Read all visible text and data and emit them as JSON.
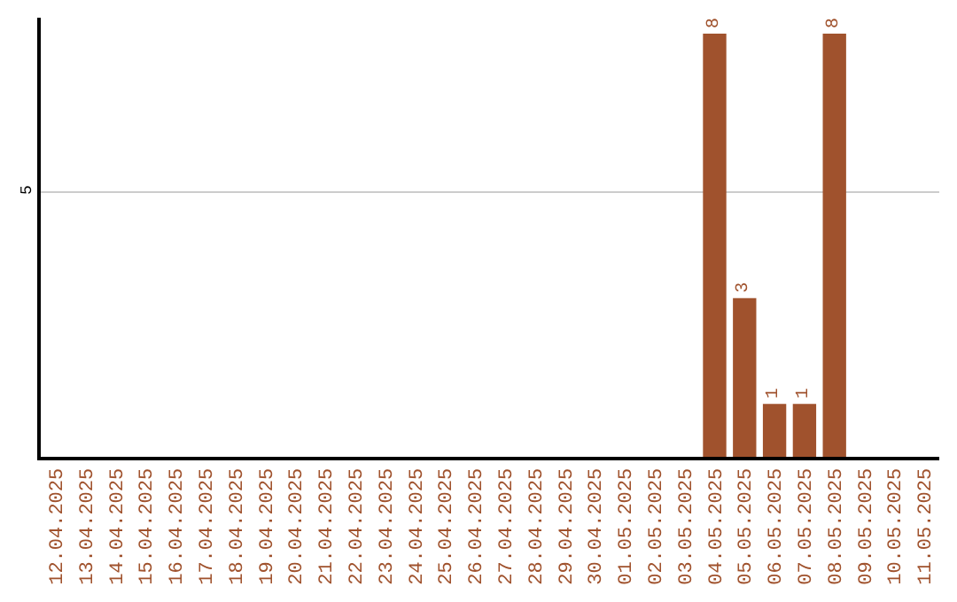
{
  "chart_data": {
    "type": "bar",
    "categories": [
      "12.04.2025",
      "13.04.2025",
      "14.04.2025",
      "15.04.2025",
      "16.04.2025",
      "17.04.2025",
      "18.04.2025",
      "19.04.2025",
      "20.04.2025",
      "21.04.2025",
      "22.04.2025",
      "23.04.2025",
      "24.04.2025",
      "25.04.2025",
      "26.04.2025",
      "27.04.2025",
      "28.04.2025",
      "29.04.2025",
      "30.04.2025",
      "01.05.2025",
      "02.05.2025",
      "03.05.2025",
      "04.05.2025",
      "05.05.2025",
      "06.05.2025",
      "07.05.2025",
      "08.05.2025",
      "09.05.2025",
      "10.05.2025",
      "11.05.2025"
    ],
    "values": [
      null,
      null,
      null,
      null,
      null,
      null,
      null,
      null,
      null,
      null,
      null,
      null,
      null,
      null,
      null,
      null,
      null,
      null,
      null,
      null,
      null,
      null,
      8,
      3,
      1,
      1,
      8,
      null,
      null,
      null
    ],
    "color": "#a0522d",
    "ylim": [
      0,
      8.3
    ],
    "yticks": [
      5
    ],
    "grid": "y",
    "data_labels": true,
    "legend": false
  }
}
